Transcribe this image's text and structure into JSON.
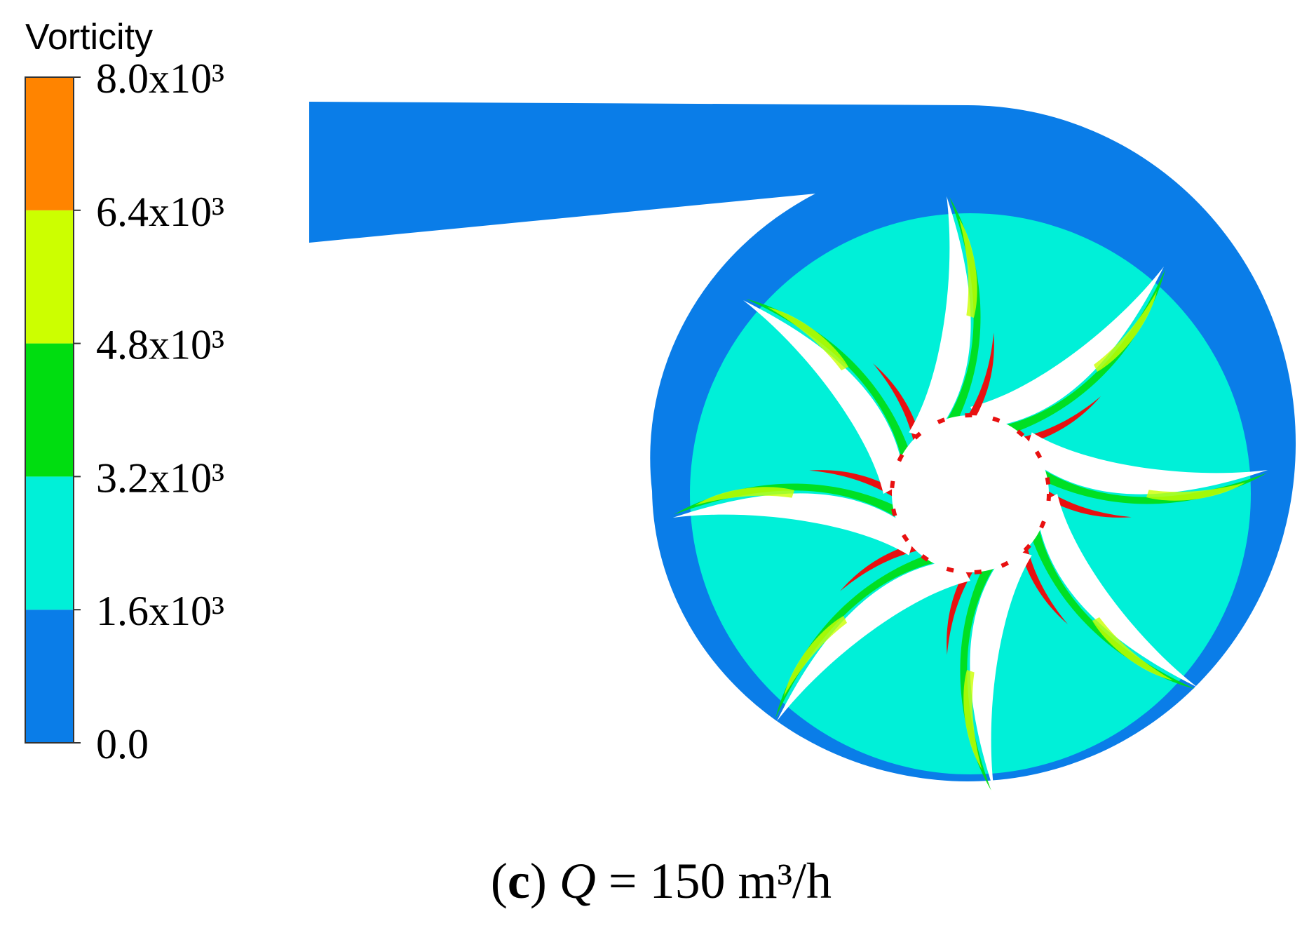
{
  "colorbar": {
    "title": "Vorticity",
    "range": [
      0,
      8000
    ],
    "ticks": [
      {
        "value": 0,
        "label": "0.0"
      },
      {
        "value": 1600,
        "label": "1.6x10³"
      },
      {
        "value": 3200,
        "label": "3.2x10³"
      },
      {
        "value": 4800,
        "label": "4.8x10³"
      },
      {
        "value": 6400,
        "label": "6.4x10³"
      },
      {
        "value": 8000,
        "label": "8.0x10³"
      }
    ],
    "colors": [
      "#0a7de8",
      "#00f0d8",
      "#00dd10",
      "#ccff00",
      "#ff8400"
    ]
  },
  "caption": {
    "prefix": "(",
    "label": "c",
    "suffix": ")",
    "variable": "Q",
    "rest": " = 150 m³/h"
  }
}
